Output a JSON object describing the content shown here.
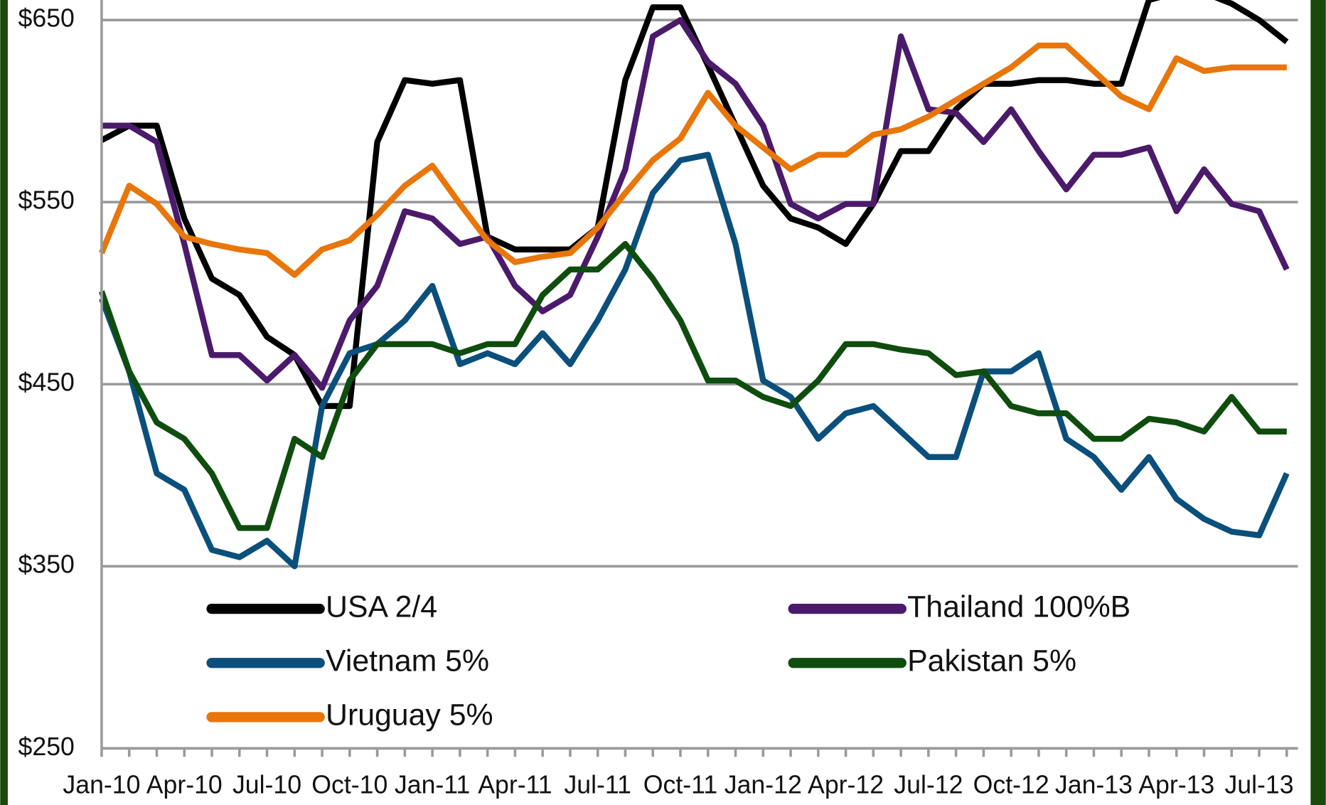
{
  "chart_data": {
    "type": "line",
    "categories": [
      "Jan-10",
      null,
      null,
      "Apr-10",
      null,
      null,
      "Jul-10",
      null,
      null,
      "Oct-10",
      null,
      null,
      "Jan-11",
      null,
      null,
      "Apr-11",
      null,
      null,
      "Jul-11",
      null,
      null,
      "Oct-11",
      null,
      null,
      "Jan-12",
      null,
      null,
      "Apr-12",
      null,
      null,
      "Jul-12",
      null,
      null,
      "Oct-12",
      null,
      null,
      "Jan-13",
      null,
      null,
      "Apr-13",
      null,
      null,
      "Jul-13",
      null
    ],
    "series": [
      {
        "name": "USA 2/4",
        "color": "#000000",
        "values": [
          584,
          592,
          592,
          541,
          508,
          499,
          476,
          466,
          438,
          438,
          583,
          617,
          615,
          617,
          531,
          524,
          524,
          524,
          536,
          617,
          657,
          657,
          625,
          592,
          559,
          541,
          536,
          527,
          549,
          578,
          578,
          601,
          615,
          615,
          617,
          617,
          615,
          615,
          661,
          665,
          665,
          659,
          650,
          638
        ]
      },
      {
        "name": "Thailand 100%B",
        "color": "#4b1a6b",
        "values": [
          592,
          592,
          583,
          527,
          466,
          466,
          452,
          466,
          448,
          485,
          504,
          545,
          541,
          527,
          531,
          504,
          490,
          499,
          531,
          568,
          641,
          650,
          627,
          615,
          592,
          549,
          541,
          549,
          549,
          641,
          601,
          599,
          583,
          601,
          578,
          557,
          576,
          576,
          580,
          545,
          568,
          549,
          545,
          513
        ]
      },
      {
        "name": "Vietnam 5%",
        "color": "#0b4f7c",
        "values": [
          497,
          457,
          401,
          392,
          359,
          355,
          364,
          350,
          438,
          467,
          472,
          485,
          504,
          461,
          467,
          461,
          478,
          461,
          485,
          513,
          555,
          573,
          576,
          527,
          452,
          443,
          420,
          434,
          438,
          424,
          410,
          410,
          457,
          457,
          467,
          420,
          410,
          392,
          410,
          387,
          376,
          369,
          367,
          401
        ]
      },
      {
        "name": "Pakistan 5%",
        "color": "#0f4d0f",
        "values": [
          501,
          457,
          429,
          420,
          401,
          371,
          371,
          420,
          410,
          452,
          472,
          472,
          472,
          467,
          472,
          472,
          499,
          513,
          513,
          527,
          508,
          485,
          452,
          452,
          443,
          438,
          452,
          472,
          472,
          469,
          467,
          455,
          457,
          438,
          434,
          434,
          420,
          420,
          431,
          429,
          424,
          443,
          424,
          424
        ]
      },
      {
        "name": "Uruguay 5%",
        "color": "#e8760a",
        "values": [
          522,
          559,
          549,
          531,
          527,
          524,
          522,
          510,
          524,
          529,
          543,
          559,
          570,
          549,
          529,
          517,
          520,
          522,
          536,
          555,
          573,
          585,
          610,
          592,
          580,
          568,
          576,
          576,
          587,
          590,
          597,
          606,
          615,
          624,
          636,
          636,
          622,
          608,
          601,
          629,
          622,
          624,
          624,
          624
        ]
      }
    ],
    "ylim": [
      250,
      661
    ],
    "yticks": [
      {
        "value": 250,
        "label": "$250"
      },
      {
        "value": 350,
        "label": "$350"
      },
      {
        "value": 450,
        "label": "$450"
      },
      {
        "value": 550,
        "label": "$550"
      },
      {
        "value": 650,
        "label": "$650"
      }
    ],
    "grid": true
  }
}
